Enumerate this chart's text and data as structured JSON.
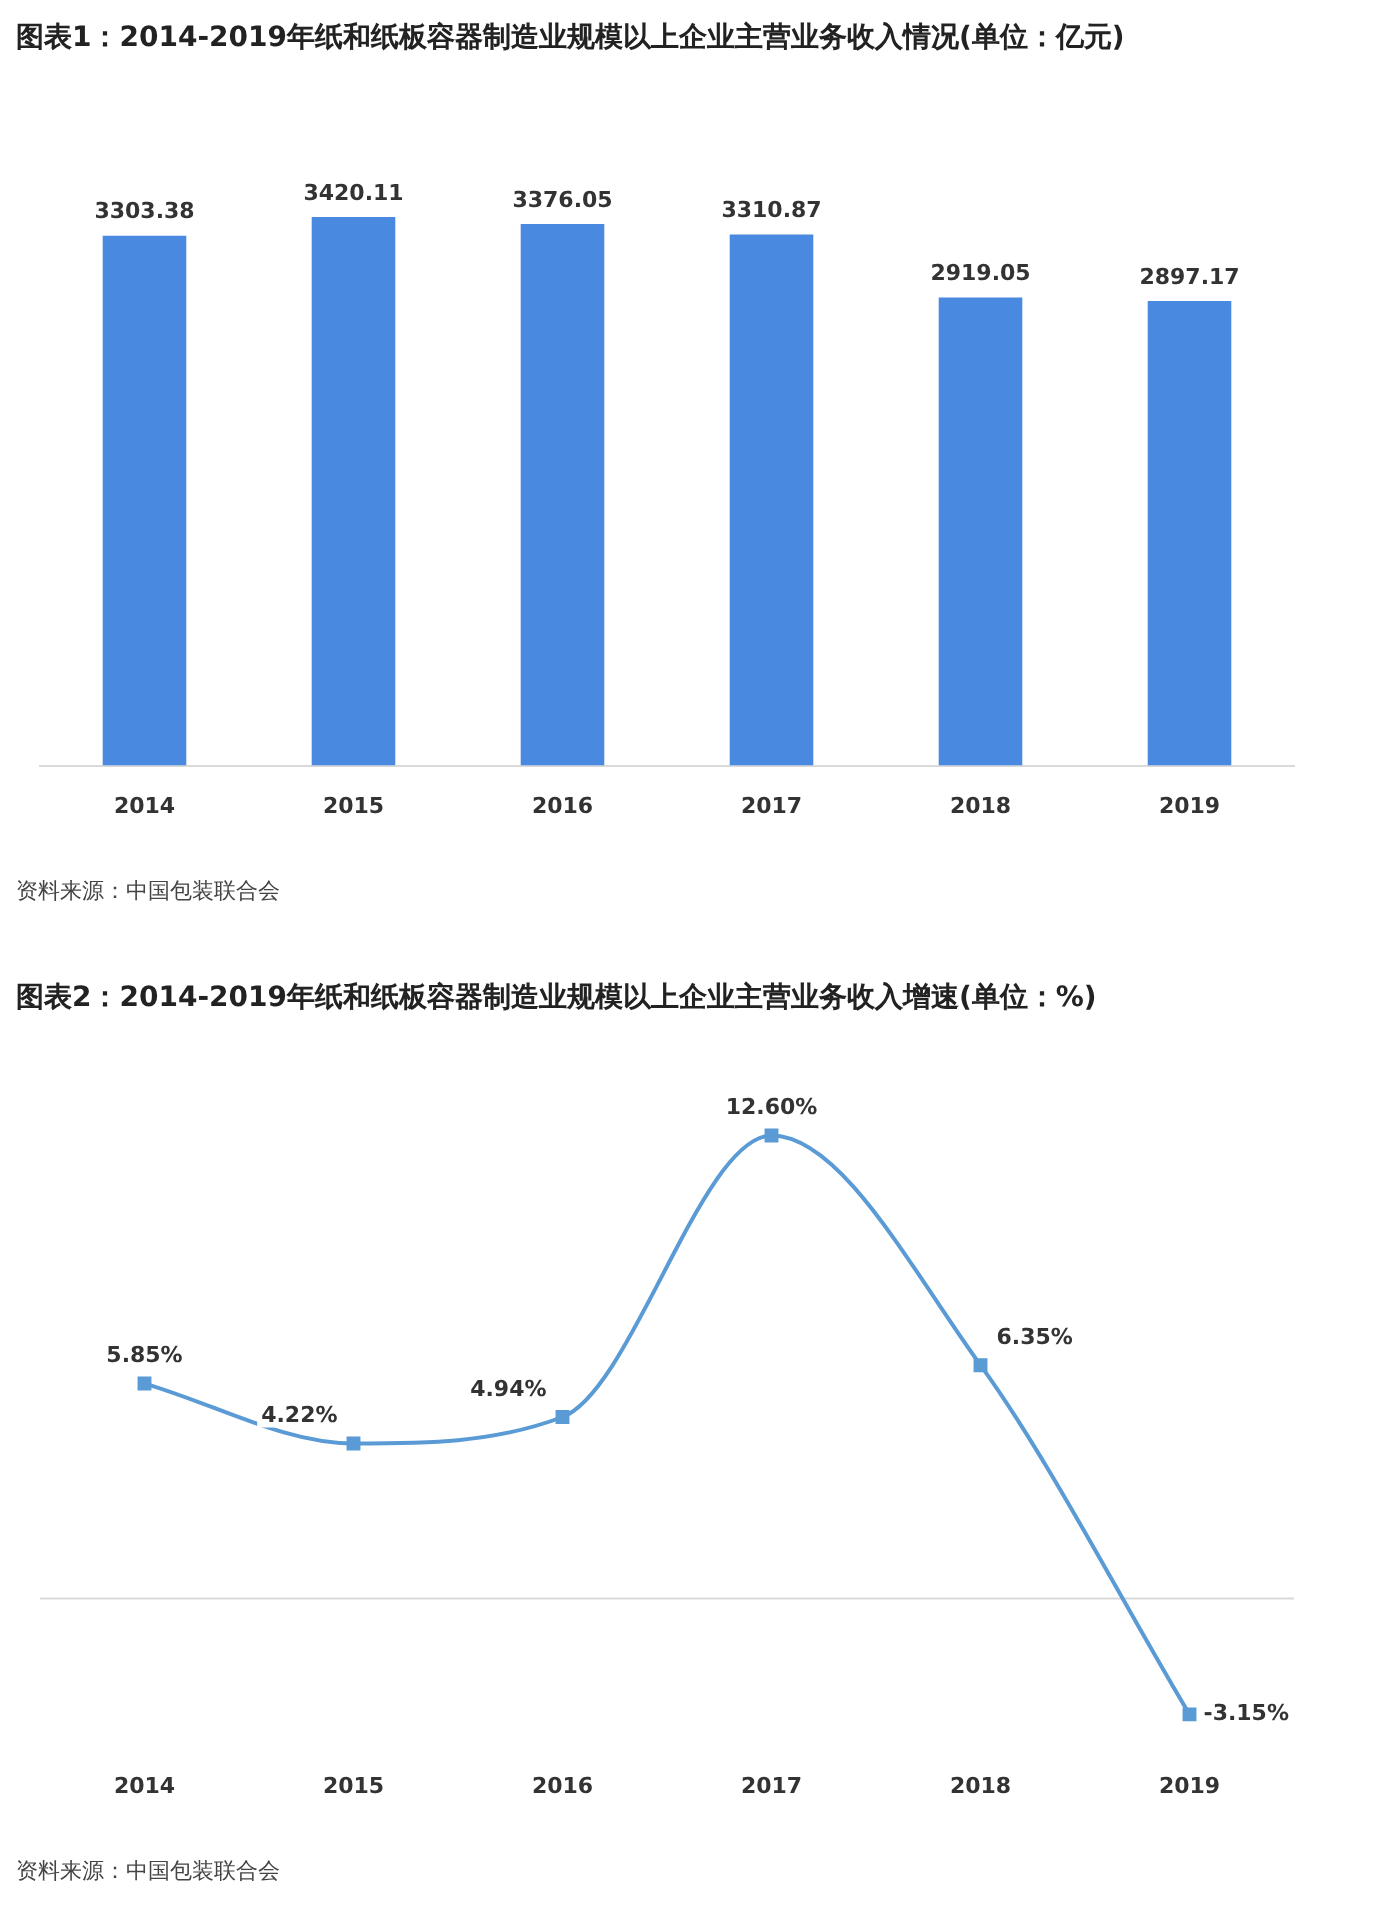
{
  "chart_data": [
    {
      "type": "bar",
      "title": "图表1：2014-2019年纸和纸板容器制造业规模以上企业主营业务收入情况(单位：亿元)",
      "categories": [
        "2014",
        "2015",
        "2016",
        "2017",
        "2018",
        "2019"
      ],
      "values": [
        3303.38,
        3420.11,
        3376.05,
        3310.87,
        2919.05,
        2897.17
      ],
      "color": "#4a89e0",
      "data_labels": true,
      "tick_labels": "x",
      "grid": false,
      "legend": false,
      "annotations": [
        "资料来源：中国包装联合会"
      ]
    },
    {
      "type": "line",
      "title": "图表2：2014-2019年纸和纸板容器制造业规模以上企业主营业务收入增速(单位：%)",
      "categories": [
        "2014",
        "2015",
        "2016",
        "2017",
        "2018",
        "2019"
      ],
      "values": [
        5.85,
        4.22,
        4.94,
        12.6,
        6.35,
        -3.15
      ],
      "value_labels": [
        "5.85%",
        "4.22%",
        "4.94%",
        "12.60%",
        "6.35%",
        "-3.15%"
      ],
      "color": "#5b9bd5",
      "marker": "square",
      "line_style": "solid",
      "tick_labels": "x",
      "grid": false,
      "legend": false,
      "ref_lines": [
        {
          "axis": "y",
          "value": 0,
          "color": "#d9d9d9"
        }
      ],
      "annotations": [
        "资料来源：中国包装联合会"
      ]
    }
  ]
}
